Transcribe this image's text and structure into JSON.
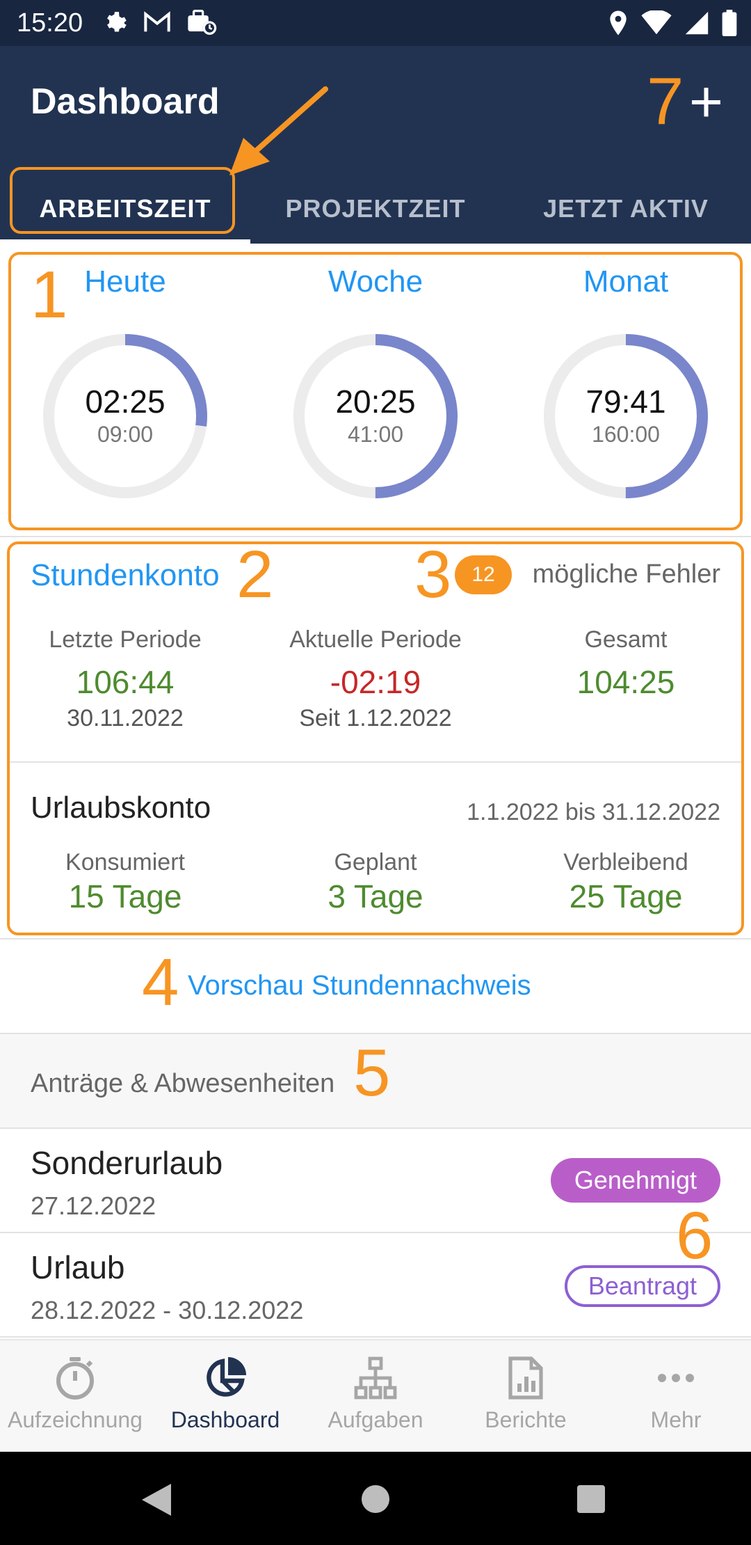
{
  "status_bar": {
    "time": "15:20",
    "icons_left": [
      "gear-icon",
      "gmail-icon",
      "work-profile-icon"
    ],
    "icons_right": [
      "location-icon",
      "wifi-icon",
      "signal-icon",
      "battery-icon"
    ]
  },
  "app_bar": {
    "title": "Dashboard",
    "add_label": "+"
  },
  "tabs": [
    {
      "label": "ARBEITSZEIT",
      "active": true
    },
    {
      "label": "PROJEKTZEIT",
      "active": false
    },
    {
      "label": "JETZT AKTIV",
      "active": false
    }
  ],
  "annotations": {
    "n1": "1",
    "n2": "2",
    "n3": "3",
    "n4": "4",
    "n5": "5",
    "n6": "6",
    "n7": "7",
    "color": "#f79523"
  },
  "time_rings": [
    {
      "label": "Heute",
      "value": "02:25",
      "target": "09:00",
      "fraction": 0.27
    },
    {
      "label": "Woche",
      "value": "20:25",
      "target": "41:00",
      "fraction": 0.5
    },
    {
      "label": "Monat",
      "value": "79:41",
      "target": "160:00",
      "fraction": 0.5
    }
  ],
  "stundenkonto": {
    "title": "Stundenkonto",
    "error_count": "12",
    "error_text": "mögliche Fehler",
    "columns": [
      {
        "label": "Letzte Periode",
        "value": "106:44",
        "sub": "30.11.2022",
        "status": "positive"
      },
      {
        "label": "Aktuelle Periode",
        "value": "-02:19",
        "sub": "Seit 1.12.2022",
        "status": "negative"
      },
      {
        "label": "Gesamt",
        "value": "104:25",
        "sub": "",
        "status": "positive"
      }
    ]
  },
  "urlaubskonto": {
    "title": "Urlaubskonto",
    "range": "1.1.2022 bis 31.12.2022",
    "columns": [
      {
        "label": "Konsumiert",
        "value": "15 Tage"
      },
      {
        "label": "Geplant",
        "value": "3 Tage"
      },
      {
        "label": "Verbleibend",
        "value": "25 Tage"
      }
    ]
  },
  "vorschau": {
    "link": "Vorschau Stundennachweis"
  },
  "antraege": {
    "header": "Anträge & Abwesenheiten",
    "items": [
      {
        "name": "Sonderurlaub",
        "date": "27.12.2022",
        "status": "Genehmigt"
      },
      {
        "name": "Urlaub",
        "date": "28.12.2022 - 30.12.2022",
        "status": "Beantragt"
      }
    ]
  },
  "bottom_nav": [
    {
      "label": "Aufzeichnung",
      "icon": "stopwatch-icon",
      "active": false
    },
    {
      "label": "Dashboard",
      "icon": "pie-chart-icon",
      "active": true
    },
    {
      "label": "Aufgaben",
      "icon": "hierarchy-icon",
      "active": false
    },
    {
      "label": "Berichte",
      "icon": "report-icon",
      "active": false
    },
    {
      "label": "Mehr",
      "icon": "more-icon",
      "active": false
    }
  ],
  "system_nav": [
    "back-icon",
    "home-icon",
    "recents-icon"
  ],
  "colors": {
    "app_bar": "#223352",
    "accent_blue": "#2196f3",
    "ring_progress": "#7986cb",
    "positive": "#4e8b2f",
    "negative": "#c62828",
    "approved": "#b95ec9",
    "requested": "#8d5fd3"
  }
}
